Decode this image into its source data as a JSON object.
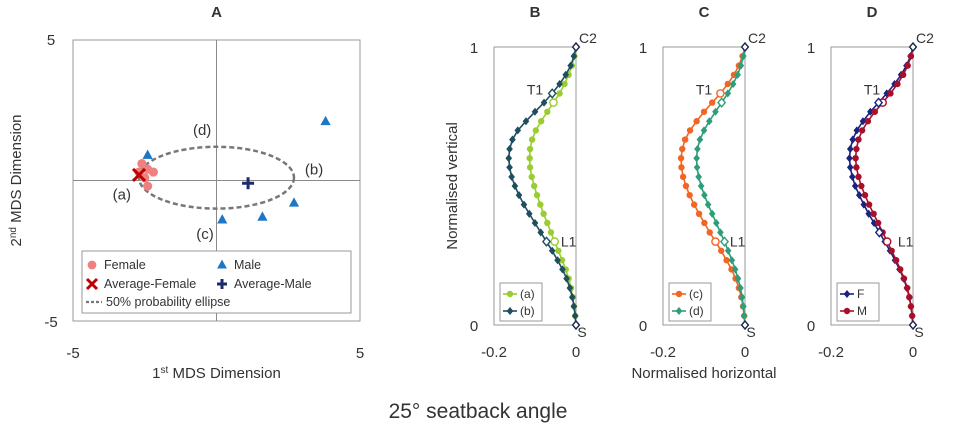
{
  "caption": "25°  seatback angle",
  "colors": {
    "female": "#f08080",
    "avg_female": "#c00000",
    "male": "#1f77c4",
    "avg_male": "#1a2a6c",
    "a": "#9acd32",
    "b": "#1f4e5f",
    "c": "#f26522",
    "d": "#2e9e7a",
    "F": "#1a237e",
    "M": "#a8102a",
    "ellipse": "#777777",
    "frame": "#999999"
  },
  "chart_data": [
    {
      "type": "scatter",
      "panel": "A",
      "title": "A",
      "xlabel": "1st MDS Dimension",
      "ylabel": "2nd MDS Dimension",
      "xlim": [
        -5,
        5
      ],
      "ylim": [
        -5,
        5
      ],
      "x_ticks": [
        "-5",
        "5"
      ],
      "y_ticks": [
        "5",
        "-5"
      ],
      "series": [
        {
          "name": "Female",
          "marker": "circle",
          "points": [
            [
              -2.6,
              0.6
            ],
            [
              -2.4,
              0.4
            ],
            [
              -2.7,
              0.3
            ],
            [
              -2.2,
              0.3
            ],
            [
              -2.5,
              0.1
            ],
            [
              -2.4,
              -0.2
            ]
          ]
        },
        {
          "name": "Average-Female",
          "marker": "x",
          "points": [
            [
              -2.7,
              0.2
            ]
          ]
        },
        {
          "name": "Male",
          "marker": "triangle",
          "points": [
            [
              -2.4,
              0.9
            ],
            [
              3.8,
              2.1
            ],
            [
              2.7,
              -0.8
            ],
            [
              1.6,
              -1.3
            ],
            [
              0.2,
              -1.4
            ]
          ]
        },
        {
          "name": "Average-Male",
          "marker": "plus",
          "points": [
            [
              1.1,
              -0.1
            ]
          ]
        }
      ],
      "ellipse": {
        "name": "50% probability ellipse",
        "center": [
          0.0,
          0.1
        ],
        "rx": 2.7,
        "ry": 1.1
      },
      "annotations": [
        {
          "label": "(a)",
          "x": -3.3,
          "y": -0.5
        },
        {
          "label": "(b)",
          "x": 3.4,
          "y": 0.4
        },
        {
          "label": "(c)",
          "x": -0.4,
          "y": -1.9
        },
        {
          "label": "(d)",
          "x": -0.5,
          "y": 1.8
        }
      ],
      "legend": [
        "Female",
        "Male",
        "Average-Female",
        "Average-Male",
        "50% probability ellipse"
      ]
    },
    {
      "type": "line",
      "panel": "B",
      "title": "B",
      "xlabel": "",
      "ylabel": "Normalised vertical",
      "xlim": [
        -0.2,
        0
      ],
      "ylim": [
        0,
        1
      ],
      "x_ticks": [
        "-0.2",
        "0"
      ],
      "y_ticks": [
        "1",
        "0"
      ],
      "point_labels": [
        "C2",
        "T1",
        "L1",
        "S"
      ],
      "series": [
        {
          "name": "(a)",
          "marker": "circle",
          "points": [
            [
              0,
              1
            ],
            [
              -0.004,
              0.967
            ],
            [
              -0.01,
              0.933
            ],
            [
              -0.018,
              0.9
            ],
            [
              -0.028,
              0.867
            ],
            [
              -0.04,
              0.833
            ],
            [
              -0.055,
              0.8
            ],
            [
              -0.07,
              0.767
            ],
            [
              -0.085,
              0.733
            ],
            [
              -0.098,
              0.7
            ],
            [
              -0.107,
              0.667
            ],
            [
              -0.112,
              0.633
            ],
            [
              -0.113,
              0.6
            ],
            [
              -0.112,
              0.567
            ],
            [
              -0.108,
              0.533
            ],
            [
              -0.102,
              0.5
            ],
            [
              -0.095,
              0.467
            ],
            [
              -0.087,
              0.433
            ],
            [
              -0.079,
              0.4
            ],
            [
              -0.07,
              0.367
            ],
            [
              -0.061,
              0.333
            ],
            [
              -0.052,
              0.3
            ],
            [
              -0.043,
              0.267
            ],
            [
              -0.034,
              0.233
            ],
            [
              -0.025,
              0.2
            ],
            [
              -0.018,
              0.167
            ],
            [
              -0.012,
              0.133
            ],
            [
              -0.008,
              0.1
            ],
            [
              -0.005,
              0.067
            ],
            [
              -0.002,
              0.033
            ],
            [
              0,
              0
            ]
          ]
        },
        {
          "name": "(b)",
          "marker": "diamond",
          "points": [
            [
              0,
              1
            ],
            [
              -0.005,
              0.967
            ],
            [
              -0.013,
              0.933
            ],
            [
              -0.025,
              0.9
            ],
            [
              -0.04,
              0.867
            ],
            [
              -0.058,
              0.833
            ],
            [
              -0.078,
              0.8
            ],
            [
              -0.1,
              0.767
            ],
            [
              -0.122,
              0.733
            ],
            [
              -0.142,
              0.7
            ],
            [
              -0.155,
              0.667
            ],
            [
              -0.162,
              0.633
            ],
            [
              -0.164,
              0.6
            ],
            [
              -0.162,
              0.567
            ],
            [
              -0.157,
              0.533
            ],
            [
              -0.149,
              0.5
            ],
            [
              -0.139,
              0.467
            ],
            [
              -0.127,
              0.433
            ],
            [
              -0.114,
              0.4
            ],
            [
              -0.1,
              0.367
            ],
            [
              -0.086,
              0.333
            ],
            [
              -0.072,
              0.3
            ],
            [
              -0.058,
              0.267
            ],
            [
              -0.045,
              0.233
            ],
            [
              -0.033,
              0.2
            ],
            [
              -0.023,
              0.167
            ],
            [
              -0.015,
              0.133
            ],
            [
              -0.009,
              0.1
            ],
            [
              -0.005,
              0.067
            ],
            [
              -0.002,
              0.033
            ],
            [
              0,
              0
            ]
          ]
        }
      ],
      "landmarks": [
        {
          "label": "T1",
          "series": "(a)",
          "x": -0.055,
          "y": 0.8
        },
        {
          "label": "L1",
          "series": "(a)",
          "x": -0.052,
          "y": 0.3
        },
        {
          "label": "T1",
          "series": "(b)",
          "x": -0.058,
          "y": 0.833
        },
        {
          "label": "L1",
          "series": "(b)",
          "x": -0.072,
          "y": 0.3
        }
      ],
      "legend": [
        "(a)",
        "(b)"
      ]
    },
    {
      "type": "line",
      "panel": "C",
      "title": "C",
      "xlabel": "Normalised horizontal",
      "ylabel": "",
      "xlim": [
        -0.2,
        0
      ],
      "ylim": [
        0,
        1
      ],
      "x_ticks": [
        "-0.2",
        "0"
      ],
      "y_ticks": [
        "1",
        "0"
      ],
      "point_labels": [
        "C2",
        "T1",
        "L1",
        "S"
      ],
      "series": [
        {
          "name": "(c)",
          "marker": "circle",
          "points": [
            [
              0,
              1
            ],
            [
              -0.006,
              0.967
            ],
            [
              -0.015,
              0.933
            ],
            [
              -0.027,
              0.9
            ],
            [
              -0.042,
              0.867
            ],
            [
              -0.06,
              0.833
            ],
            [
              -0.08,
              0.8
            ],
            [
              -0.1,
              0.767
            ],
            [
              -0.118,
              0.733
            ],
            [
              -0.134,
              0.7
            ],
            [
              -0.146,
              0.667
            ],
            [
              -0.153,
              0.633
            ],
            [
              -0.156,
              0.6
            ],
            [
              -0.155,
              0.567
            ],
            [
              -0.151,
              0.533
            ],
            [
              -0.144,
              0.5
            ],
            [
              -0.135,
              0.467
            ],
            [
              -0.124,
              0.433
            ],
            [
              -0.112,
              0.4
            ],
            [
              -0.099,
              0.367
            ],
            [
              -0.086,
              0.333
            ],
            [
              -0.072,
              0.3
            ],
            [
              -0.058,
              0.267
            ],
            [
              -0.045,
              0.233
            ],
            [
              -0.033,
              0.2
            ],
            [
              -0.023,
              0.167
            ],
            [
              -0.015,
              0.133
            ],
            [
              -0.009,
              0.1
            ],
            [
              -0.005,
              0.067
            ],
            [
              -0.002,
              0.033
            ],
            [
              0,
              0
            ]
          ]
        },
        {
          "name": "(d)",
          "marker": "diamond",
          "points": [
            [
              0,
              1
            ],
            [
              -0.004,
              0.967
            ],
            [
              -0.01,
              0.933
            ],
            [
              -0.018,
              0.9
            ],
            [
              -0.029,
              0.867
            ],
            [
              -0.042,
              0.833
            ],
            [
              -0.057,
              0.8
            ],
            [
              -0.072,
              0.767
            ],
            [
              -0.087,
              0.733
            ],
            [
              -0.1,
              0.7
            ],
            [
              -0.11,
              0.667
            ],
            [
              -0.116,
              0.633
            ],
            [
              -0.118,
              0.6
            ],
            [
              -0.117,
              0.567
            ],
            [
              -0.113,
              0.533
            ],
            [
              -0.107,
              0.5
            ],
            [
              -0.099,
              0.467
            ],
            [
              -0.09,
              0.433
            ],
            [
              -0.08,
              0.4
            ],
            [
              -0.07,
              0.367
            ],
            [
              -0.06,
              0.333
            ],
            [
              -0.05,
              0.3
            ],
            [
              -0.041,
              0.267
            ],
            [
              -0.032,
              0.233
            ],
            [
              -0.024,
              0.2
            ],
            [
              -0.017,
              0.167
            ],
            [
              -0.011,
              0.133
            ],
            [
              -0.007,
              0.1
            ],
            [
              -0.004,
              0.067
            ],
            [
              -0.002,
              0.033
            ],
            [
              0,
              0
            ]
          ]
        }
      ],
      "landmarks": [
        {
          "label": "T1",
          "series": "(c)",
          "x": -0.06,
          "y": 0.833
        },
        {
          "label": "L1",
          "series": "(c)",
          "x": -0.072,
          "y": 0.3
        },
        {
          "label": "T1",
          "series": "(d)",
          "x": -0.057,
          "y": 0.8
        },
        {
          "label": "L1",
          "series": "(d)",
          "x": -0.05,
          "y": 0.3
        }
      ],
      "legend": [
        "(c)",
        "(d)"
      ]
    },
    {
      "type": "line",
      "panel": "D",
      "title": "D",
      "xlabel": "",
      "ylabel": "",
      "xlim": [
        -0.2,
        0
      ],
      "ylim": [
        0,
        1
      ],
      "x_ticks": [
        "-0.2",
        "0"
      ],
      "y_ticks": [
        "1",
        "0"
      ],
      "point_labels": [
        "C2",
        "T1",
        "L1",
        "S"
      ],
      "series": [
        {
          "name": "F",
          "marker": "diamond",
          "points": [
            [
              0,
              1
            ],
            [
              -0.006,
              0.967
            ],
            [
              -0.016,
              0.933
            ],
            [
              -0.029,
              0.9
            ],
            [
              -0.045,
              0.867
            ],
            [
              -0.064,
              0.833
            ],
            [
              -0.084,
              0.8
            ],
            [
              -0.104,
              0.767
            ],
            [
              -0.122,
              0.733
            ],
            [
              -0.137,
              0.7
            ],
            [
              -0.147,
              0.667
            ],
            [
              -0.153,
              0.633
            ],
            [
              -0.155,
              0.6
            ],
            [
              -0.153,
              0.567
            ],
            [
              -0.148,
              0.533
            ],
            [
              -0.141,
              0.5
            ],
            [
              -0.131,
              0.467
            ],
            [
              -0.12,
              0.433
            ],
            [
              -0.108,
              0.4
            ],
            [
              -0.095,
              0.367
            ],
            [
              -0.082,
              0.333
            ],
            [
              -0.069,
              0.3
            ],
            [
              -0.056,
              0.267
            ],
            [
              -0.044,
              0.233
            ],
            [
              -0.033,
              0.2
            ],
            [
              -0.023,
              0.167
            ],
            [
              -0.015,
              0.133
            ],
            [
              -0.009,
              0.1
            ],
            [
              -0.005,
              0.067
            ],
            [
              -0.002,
              0.033
            ],
            [
              0,
              0
            ]
          ]
        },
        {
          "name": "M",
          "marker": "circle",
          "points": [
            [
              0,
              1
            ],
            [
              -0.005,
              0.967
            ],
            [
              -0.013,
              0.933
            ],
            [
              -0.024,
              0.9
            ],
            [
              -0.038,
              0.867
            ],
            [
              -0.055,
              0.833
            ],
            [
              -0.074,
              0.8
            ],
            [
              -0.093,
              0.767
            ],
            [
              -0.11,
              0.733
            ],
            [
              -0.124,
              0.7
            ],
            [
              -0.133,
              0.667
            ],
            [
              -0.138,
              0.633
            ],
            [
              -0.14,
              0.6
            ],
            [
              -0.138,
              0.567
            ],
            [
              -0.133,
              0.533
            ],
            [
              -0.126,
              0.5
            ],
            [
              -0.117,
              0.467
            ],
            [
              -0.107,
              0.433
            ],
            [
              -0.096,
              0.4
            ],
            [
              -0.085,
              0.367
            ],
            [
              -0.074,
              0.333
            ],
            [
              -0.063,
              0.3
            ],
            [
              -0.052,
              0.267
            ],
            [
              -0.041,
              0.233
            ],
            [
              -0.031,
              0.2
            ],
            [
              -0.022,
              0.167
            ],
            [
              -0.014,
              0.133
            ],
            [
              -0.009,
              0.1
            ],
            [
              -0.005,
              0.067
            ],
            [
              -0.002,
              0.033
            ],
            [
              0,
              0
            ]
          ]
        }
      ],
      "landmarks": [
        {
          "label": "T1",
          "series": "M",
          "x": -0.074,
          "y": 0.8
        },
        {
          "label": "L1",
          "series": "M",
          "x": -0.063,
          "y": 0.3
        },
        {
          "label": "T1",
          "series": "F",
          "x": -0.084,
          "y": 0.8
        },
        {
          "label": "L1",
          "series": "F",
          "x": -0.082,
          "y": 0.333
        }
      ],
      "legend": [
        "F",
        "M"
      ]
    }
  ]
}
